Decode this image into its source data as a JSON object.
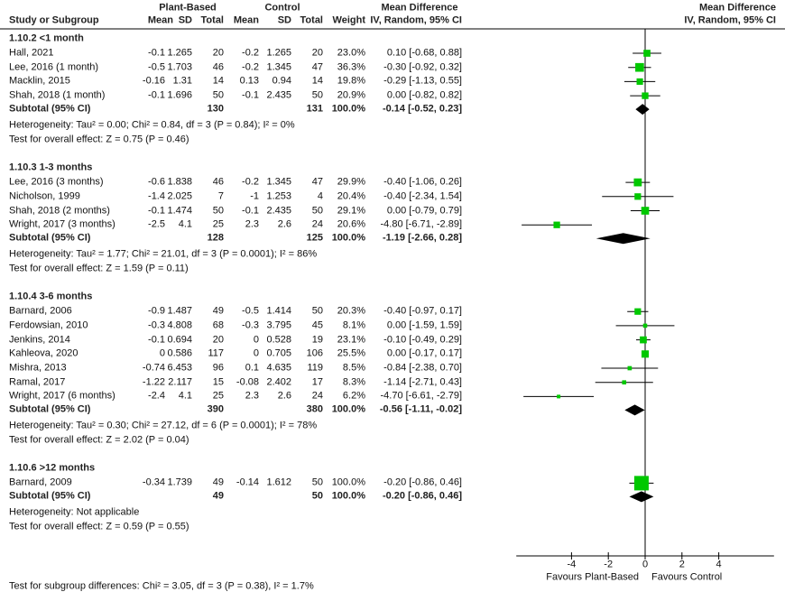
{
  "header": {
    "plant_based": "Plant-Based",
    "control": "Control",
    "mean_difference": "Mean Difference",
    "study": "Study or Subgroup",
    "mean": "Mean",
    "sd": "SD",
    "total": "Total",
    "weight": "Weight",
    "method": "IV, Random, 95% CI",
    "plot_title": "Mean Difference",
    "plot_method": "IV, Random, 95% CI"
  },
  "chart_data": {
    "type": "forest",
    "xlim": [
      -7,
      7
    ],
    "ticks": [
      "-4",
      "-2",
      "0",
      "2",
      "4"
    ],
    "favours_left": "Favours Plant-Based",
    "favours_right": "Favours Control",
    "colors": {
      "square": "#00c800",
      "line": "#000000",
      "diamond": "#000000"
    },
    "subgroups": [
      {
        "title": "1.10.2 <1 month",
        "studies": [
          {
            "name": "Hall, 2021",
            "pb_mean": "-0.1",
            "pb_sd": "1.265",
            "pb_total": "20",
            "c_mean": "-0.2",
            "c_sd": "1.265",
            "c_total": "20",
            "weight": "23.0%",
            "ci": "0.10 [-0.68, 0.88]"
          },
          {
            "name": "Lee, 2016 (1 month)",
            "pb_mean": "-0.5",
            "pb_sd": "1.703",
            "pb_total": "46",
            "c_mean": "-0.2",
            "c_sd": "1.345",
            "c_total": "47",
            "weight": "36.3%",
            "ci": "-0.30 [-0.92, 0.32]"
          },
          {
            "name": "Macklin, 2015",
            "pb_mean": "-0.16",
            "pb_sd": "1.31",
            "pb_total": "14",
            "c_mean": "0.13",
            "c_sd": "0.94",
            "c_total": "14",
            "weight": "19.8%",
            "ci": "-0.29 [-1.13, 0.55]"
          },
          {
            "name": "Shah, 2018 (1 month)",
            "pb_mean": "-0.1",
            "pb_sd": "1.696",
            "pb_total": "50",
            "c_mean": "-0.1",
            "c_sd": "2.435",
            "c_total": "50",
            "weight": "20.9%",
            "ci": "0.00 [-0.82, 0.82]"
          }
        ],
        "subtotal": {
          "label": "Subtotal (95% CI)",
          "pb_total": "130",
          "c_total": "131",
          "weight": "100.0%",
          "ci": "-0.14 [-0.52, 0.23]"
        },
        "heterogeneity": "Heterogeneity: Tau² = 0.00; Chi² = 0.84, df = 3 (P = 0.84); I² = 0%",
        "overall": "Test for overall effect: Z = 0.75 (P = 0.46)"
      },
      {
        "title": "1.10.3 1-3 months",
        "studies": [
          {
            "name": "Lee, 2016 (3 months)",
            "pb_mean": "-0.6",
            "pb_sd": "1.838",
            "pb_total": "46",
            "c_mean": "-0.2",
            "c_sd": "1.345",
            "c_total": "47",
            "weight": "29.9%",
            "ci": "-0.40 [-1.06, 0.26]"
          },
          {
            "name": "Nicholson, 1999",
            "pb_mean": "-1.4",
            "pb_sd": "2.025",
            "pb_total": "7",
            "c_mean": "-1",
            "c_sd": "1.253",
            "c_total": "4",
            "weight": "20.4%",
            "ci": "-0.40 [-2.34, 1.54]"
          },
          {
            "name": "Shah, 2018 (2 months)",
            "pb_mean": "-0.1",
            "pb_sd": "1.474",
            "pb_total": "50",
            "c_mean": "-0.1",
            "c_sd": "2.435",
            "c_total": "50",
            "weight": "29.1%",
            "ci": "0.00 [-0.79, 0.79]"
          },
          {
            "name": "Wright, 2017 (3 months)",
            "pb_mean": "-2.5",
            "pb_sd": "4.1",
            "pb_total": "25",
            "c_mean": "2.3",
            "c_sd": "2.6",
            "c_total": "24",
            "weight": "20.6%",
            "ci": "-4.80 [-6.71, -2.89]"
          }
        ],
        "subtotal": {
          "label": "Subtotal (95% CI)",
          "pb_total": "128",
          "c_total": "125",
          "weight": "100.0%",
          "ci": "-1.19 [-2.66, 0.28]"
        },
        "heterogeneity": "Heterogeneity: Tau² = 1.77; Chi² = 21.01, df = 3 (P = 0.0001); I² = 86%",
        "overall": "Test for overall effect: Z = 1.59 (P = 0.11)"
      },
      {
        "title": "1.10.4 3-6 months",
        "studies": [
          {
            "name": "Barnard, 2006",
            "pb_mean": "-0.9",
            "pb_sd": "1.487",
            "pb_total": "49",
            "c_mean": "-0.5",
            "c_sd": "1.414",
            "c_total": "50",
            "weight": "20.3%",
            "ci": "-0.40 [-0.97, 0.17]"
          },
          {
            "name": "Ferdowsian, 2010",
            "pb_mean": "-0.3",
            "pb_sd": "4.808",
            "pb_total": "68",
            "c_mean": "-0.3",
            "c_sd": "3.795",
            "c_total": "45",
            "weight": "8.1%",
            "ci": "0.00 [-1.59, 1.59]"
          },
          {
            "name": "Jenkins, 2014",
            "pb_mean": "-0.1",
            "pb_sd": "0.694",
            "pb_total": "20",
            "c_mean": "0",
            "c_sd": "0.528",
            "c_total": "19",
            "weight": "23.1%",
            "ci": "-0.10 [-0.49, 0.29]"
          },
          {
            "name": "Kahleova, 2020",
            "pb_mean": "0",
            "pb_sd": "0.586",
            "pb_total": "117",
            "c_mean": "0",
            "c_sd": "0.705",
            "c_total": "106",
            "weight": "25.5%",
            "ci": "0.00 [-0.17, 0.17]"
          },
          {
            "name": "Mishra, 2013",
            "pb_mean": "-0.74",
            "pb_sd": "6.453",
            "pb_total": "96",
            "c_mean": "0.1",
            "c_sd": "4.635",
            "c_total": "119",
            "weight": "8.5%",
            "ci": "-0.84 [-2.38, 0.70]"
          },
          {
            "name": "Ramal, 2017",
            "pb_mean": "-1.22",
            "pb_sd": "2.117",
            "pb_total": "15",
            "c_mean": "-0.08",
            "c_sd": "2.402",
            "c_total": "17",
            "weight": "8.3%",
            "ci": "-1.14 [-2.71, 0.43]"
          },
          {
            "name": "Wright, 2017 (6 months)",
            "pb_mean": "-2.4",
            "pb_sd": "4.1",
            "pb_total": "25",
            "c_mean": "2.3",
            "c_sd": "2.6",
            "c_total": "24",
            "weight": "6.2%",
            "ci": "-4.70 [-6.61, -2.79]"
          }
        ],
        "subtotal": {
          "label": "Subtotal (95% CI)",
          "pb_total": "390",
          "c_total": "380",
          "weight": "100.0%",
          "ci": "-0.56 [-1.11, -0.02]"
        },
        "heterogeneity": "Heterogeneity: Tau² = 0.30; Chi² = 27.12, df = 6 (P = 0.0001); I² = 78%",
        "overall": "Test for overall effect: Z = 2.02 (P = 0.04)"
      },
      {
        "title": "1.10.6 >12 months",
        "studies": [
          {
            "name": "Barnard, 2009",
            "pb_mean": "-0.34",
            "pb_sd": "1.739",
            "pb_total": "49",
            "c_mean": "-0.14",
            "c_sd": "1.612",
            "c_total": "50",
            "weight": "100.0%",
            "ci": "-0.20 [-0.86, 0.46]"
          }
        ],
        "subtotal": {
          "label": "Subtotal (95% CI)",
          "pb_total": "49",
          "c_total": "50",
          "weight": "100.0%",
          "ci": "-0.20 [-0.86, 0.46]"
        },
        "heterogeneity": "Heterogeneity: Not applicable",
        "overall": "Test for overall effect: Z = 0.59 (P = 0.55)"
      }
    ],
    "subgroup_differences": "Test for subgroup differences: Chi² = 3.05, df = 3 (P = 0.38), I² = 1.7%"
  }
}
